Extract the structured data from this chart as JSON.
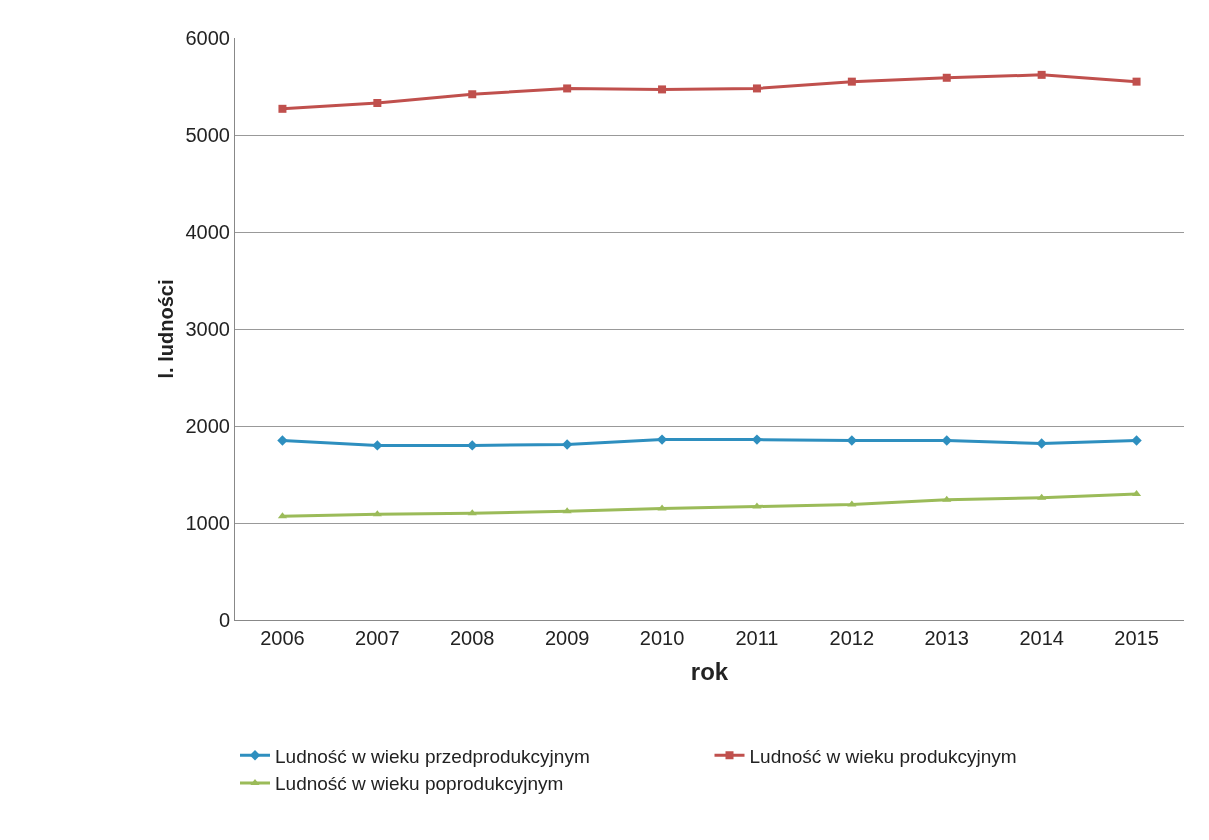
{
  "chart_data": {
    "type": "line",
    "xlabel": "rok",
    "ylabel": "l. ludności",
    "categories": [
      "2006",
      "2007",
      "2008",
      "2009",
      "2010",
      "2011",
      "2012",
      "2013",
      "2014",
      "2015"
    ],
    "series": [
      {
        "name": "Ludność w wieku przedprodukcyjnym",
        "color": "#2e8fbf",
        "marker": "diamond",
        "values": [
          1850,
          1800,
          1800,
          1810,
          1860,
          1860,
          1850,
          1850,
          1820,
          1850
        ]
      },
      {
        "name": "Ludność w wieku produkcyjnym",
        "color": "#c0504d",
        "marker": "square",
        "values": [
          5270,
          5330,
          5420,
          5480,
          5470,
          5480,
          5550,
          5590,
          5620,
          5550
        ]
      },
      {
        "name": "Ludność w wieku poprodukcyjnym",
        "color": "#9bbb59",
        "marker": "triangle",
        "values": [
          1070,
          1090,
          1100,
          1120,
          1150,
          1170,
          1190,
          1240,
          1260,
          1300
        ]
      }
    ],
    "ylim": [
      0,
      6000
    ],
    "yticks": [
      0,
      1000,
      2000,
      3000,
      4000,
      5000,
      6000
    ],
    "grid": "y",
    "legend": "bottom",
    "line_style": "solid"
  }
}
